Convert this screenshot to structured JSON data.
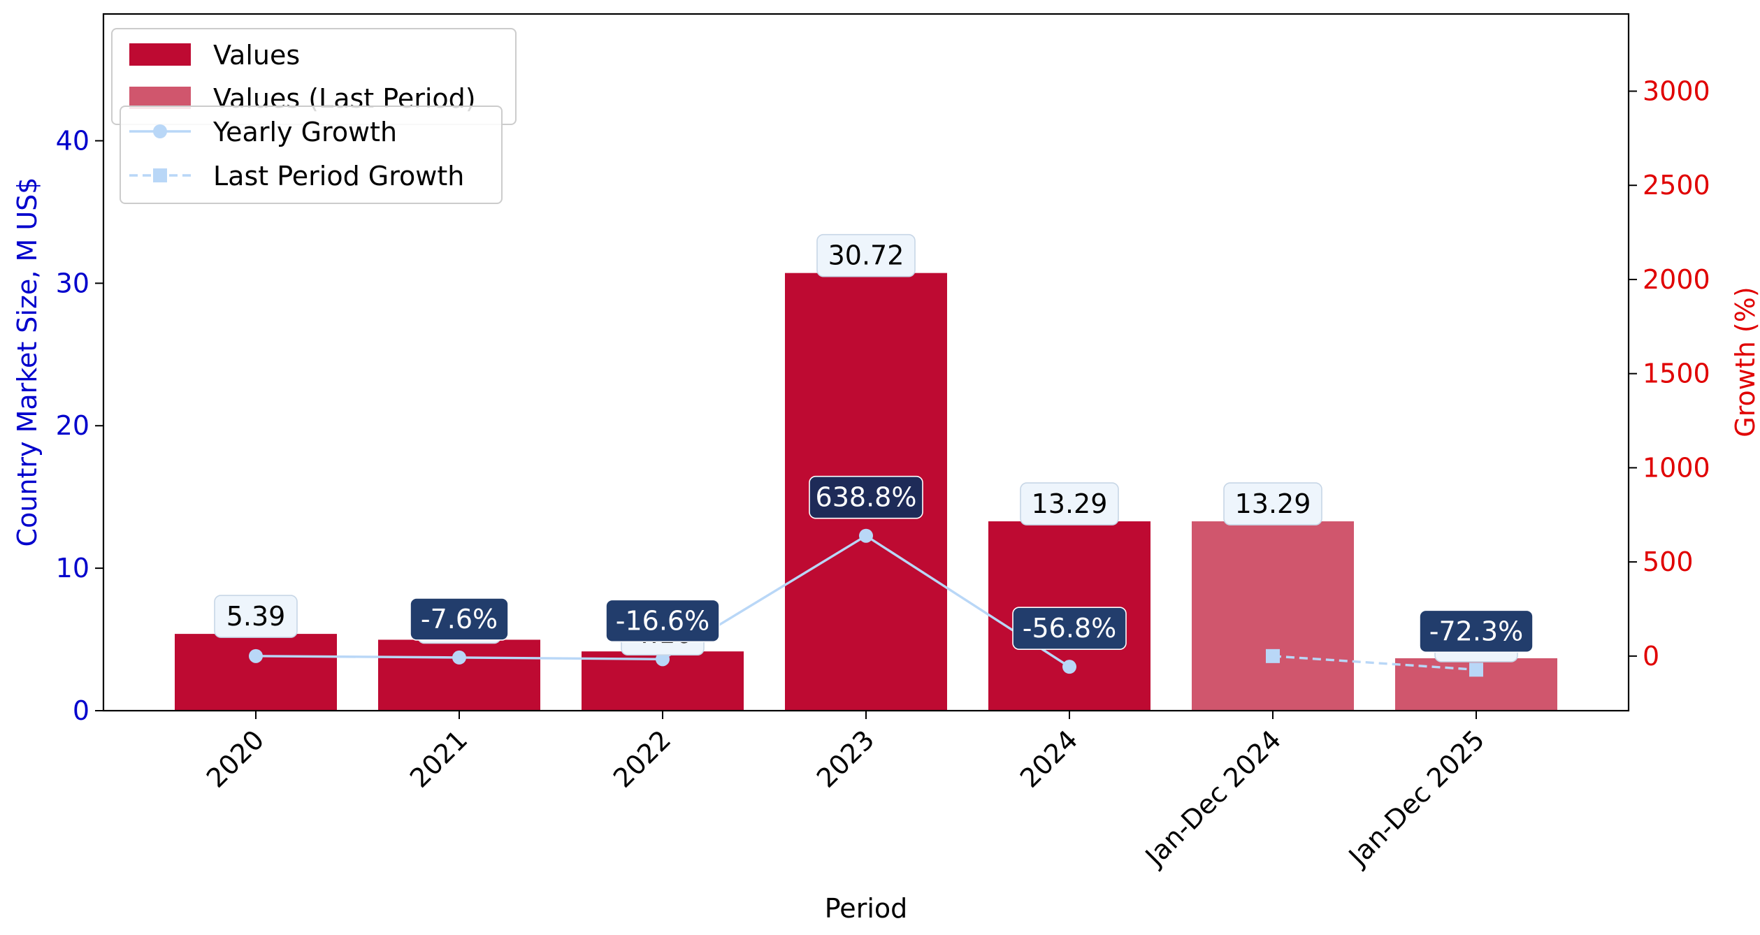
{
  "chart_data": {
    "type": "bar",
    "categories": [
      "2020",
      "2021",
      "2022",
      "2023",
      "2024",
      "Jan-Dec 2024",
      "Jan-Dec 2025"
    ],
    "series": [
      {
        "name": "Values",
        "kind": "bar",
        "axis": "left",
        "color": "#be0a32",
        "values": [
          5.39,
          4.98,
          4.16,
          30.72,
          13.29,
          null,
          null
        ],
        "labels": [
          "5.39",
          "4.98",
          "4.16",
          "30.72",
          "13.29",
          "",
          ""
        ]
      },
      {
        "name": "Values (Last Period)",
        "kind": "bar",
        "axis": "left",
        "color": "#d0566d",
        "values": [
          null,
          null,
          null,
          null,
          null,
          13.29,
          3.68
        ],
        "labels": [
          "",
          "",
          "",
          "",
          "",
          "13.29",
          "3.68"
        ]
      },
      {
        "name": "Yearly Growth",
        "kind": "line",
        "style": "solid",
        "marker": "circle",
        "axis": "right",
        "color": "#b9d7f7",
        "values": [
          0,
          -7.6,
          -16.6,
          638.8,
          -56.8,
          null,
          null
        ],
        "labels": [
          "",
          "-7.6%",
          "-16.6%",
          "638.8%",
          "-56.8%",
          "",
          ""
        ]
      },
      {
        "name": "Last Period Growth",
        "kind": "line",
        "style": "dashed",
        "marker": "square",
        "axis": "right",
        "color": "#b9d7f7",
        "values": [
          null,
          null,
          null,
          null,
          null,
          0,
          -72.3
        ],
        "labels": [
          "",
          "",
          "",
          "",
          "",
          "",
          "-72.3%"
        ]
      }
    ],
    "xlabel": "Period",
    "ylabel": "Country Market Size, M US$",
    "y2label": "Growth (%)",
    "ylim": [
      0,
      48.9
    ],
    "y2lim": [
      -290,
      3410
    ],
    "yticks": [
      0,
      10,
      20,
      30,
      40
    ],
    "y2ticks": [
      0,
      500,
      1000,
      1500,
      2000,
      2500,
      3000
    ],
    "grid": false,
    "legend_placement": "top-left",
    "colors": {
      "left_axis": "#0000cc",
      "right_axis": "#e00000",
      "value_label_bg": "#eef5fc",
      "growth_label_bg_dark": "#1e2b58",
      "growth_label_bg_mid": "#223d6c"
    }
  }
}
